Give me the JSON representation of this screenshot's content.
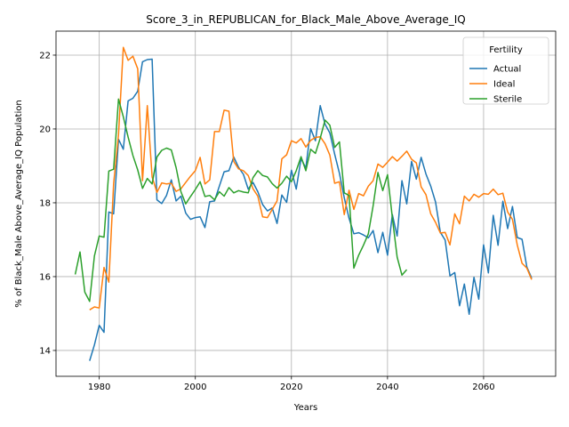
{
  "chart_data": {
    "type": "line",
    "title": "Score_3_in_REPUBLICAN_for_Black_Male_Above_Average_IQ",
    "xlabel": "Years",
    "ylabel": "% of Black_Male Above_Average_IQ Population",
    "xlim": [
      1971,
      2075
    ],
    "ylim": [
      13.3,
      22.65
    ],
    "xticks": [
      1980,
      2000,
      2020,
      2040,
      2060
    ],
    "yticks": [
      14,
      16,
      18,
      20,
      22
    ],
    "grid": true,
    "legend": {
      "title": "Fertility",
      "position": "top-right"
    },
    "series": [
      {
        "name": "Actual",
        "color": "#1f77b4",
        "x": [
          1978,
          1979,
          1980,
          1981,
          1982,
          1983,
          1984,
          1985,
          1986,
          1987,
          1988,
          1989,
          1990,
          1991,
          1992,
          1993,
          1994,
          1995,
          1996,
          1997,
          1998,
          1999,
          2000,
          2001,
          2002,
          2003,
          2004,
          2005,
          2006,
          2007,
          2008,
          2009,
          2010,
          2011,
          2012,
          2013,
          2014,
          2015,
          2016,
          2017,
          2018,
          2019,
          2020,
          2021,
          2022,
          2023,
          2024,
          2025,
          2026,
          2027,
          2028,
          2029,
          2030,
          2031,
          2032,
          2033,
          2034,
          2035,
          2036,
          2037,
          2038,
          2039,
          2040,
          2041,
          2042,
          2043,
          2044,
          2045,
          2046,
          2047,
          2048,
          2049,
          2050,
          2051,
          2052,
          2053,
          2054,
          2055,
          2056,
          2057,
          2058,
          2059,
          2060,
          2061,
          2062,
          2063,
          2064,
          2065,
          2066,
          2067,
          2068,
          2069,
          2070
        ],
        "y": [
          13.72,
          14.15,
          14.68,
          14.49,
          17.75,
          17.7,
          19.72,
          19.45,
          20.76,
          20.83,
          21.02,
          21.82,
          21.88,
          21.89,
          18.08,
          17.98,
          18.2,
          18.62,
          18.05,
          18.18,
          17.72,
          17.55,
          17.6,
          17.62,
          17.33,
          18.03,
          18.05,
          18.45,
          18.84,
          18.87,
          19.24,
          18.96,
          18.77,
          18.37,
          18.55,
          18.3,
          17.95,
          17.78,
          17.86,
          17.44,
          18.21,
          18.01,
          18.88,
          18.37,
          19.2,
          18.94,
          20.01,
          19.68,
          20.63,
          20.13,
          19.89,
          19.32,
          18.8,
          18.14,
          17.58,
          17.16,
          17.19,
          17.13,
          17.05,
          17.25,
          16.65,
          17.2,
          16.58,
          17.68,
          17.1,
          18.6,
          17.97,
          19.12,
          18.64,
          19.23,
          18.78,
          18.45,
          18.02,
          17.2,
          16.99,
          16.02,
          16.11,
          15.21,
          15.8,
          14.98,
          15.98,
          15.39,
          16.86,
          16.1,
          17.66,
          16.85,
          18.04,
          17.3,
          17.9,
          17.06,
          17.01,
          16.26,
          15.96
        ]
      },
      {
        "name": "Ideal",
        "color": "#ff7f0e",
        "x": [
          1978,
          1979,
          1980,
          1981,
          1982,
          1983,
          1984,
          1985,
          1986,
          1987,
          1988,
          1989,
          1990,
          1991,
          1992,
          1993,
          1994,
          1995,
          1996,
          1997,
          1998,
          1999,
          2000,
          2001,
          2002,
          2003,
          2004,
          2005,
          2006,
          2007,
          2008,
          2009,
          2010,
          2011,
          2012,
          2013,
          2014,
          2015,
          2016,
          2017,
          2018,
          2019,
          2020,
          2021,
          2022,
          2023,
          2024,
          2025,
          2026,
          2027,
          2028,
          2029,
          2030,
          2031,
          2032,
          2033,
          2034,
          2035,
          2036,
          2037,
          2038,
          2039,
          2040,
          2041,
          2042,
          2043,
          2044,
          2045,
          2046,
          2047,
          2048,
          2049,
          2050,
          2051,
          2052,
          2053,
          2054,
          2055,
          2056,
          2057,
          2058,
          2059,
          2060,
          2061,
          2062,
          2063,
          2064,
          2065,
          2066,
          2067,
          2068,
          2069,
          2070
        ],
        "y": [
          15.1,
          15.18,
          15.15,
          16.25,
          15.85,
          18.52,
          19.85,
          22.21,
          21.86,
          21.97,
          21.63,
          18.6,
          20.63,
          18.7,
          18.28,
          18.54,
          18.51,
          18.53,
          18.31,
          18.38,
          18.55,
          18.72,
          18.87,
          19.23,
          18.51,
          18.62,
          19.93,
          19.93,
          20.51,
          20.48,
          19.12,
          18.92,
          18.87,
          18.74,
          18.38,
          18.18,
          17.62,
          17.6,
          17.82,
          18.05,
          19.19,
          19.3,
          19.68,
          19.62,
          19.74,
          19.51,
          19.69,
          19.77,
          19.79,
          19.6,
          19.29,
          18.53,
          18.57,
          17.68,
          18.34,
          17.82,
          18.25,
          18.19,
          18.45,
          18.6,
          19.05,
          18.96,
          19.1,
          19.25,
          19.13,
          19.26,
          19.4,
          19.18,
          19.08,
          18.43,
          18.22,
          17.7,
          17.47,
          17.18,
          17.2,
          16.86,
          17.7,
          17.43,
          18.18,
          18.05,
          18.23,
          18.15,
          18.25,
          18.23,
          18.37,
          18.22,
          18.26,
          17.75,
          17.55,
          16.86,
          16.36,
          16.23,
          15.92
        ]
      },
      {
        "name": "Sterile",
        "color": "#2ca02c",
        "x": [
          1975,
          1976,
          1977,
          1978,
          1979,
          1980,
          1981,
          1982,
          1983,
          1984,
          1985,
          1986,
          1987,
          1988,
          1989,
          1990,
          1991,
          1992,
          1993,
          1994,
          1995,
          1996,
          1997,
          1998,
          1999,
          2000,
          2001,
          2002,
          2003,
          2004,
          2005,
          2006,
          2007,
          2008,
          2009,
          2010,
          2011,
          2012,
          2013,
          2014,
          2015,
          2016,
          2017,
          2018,
          2019,
          2020,
          2021,
          2022,
          2023,
          2024,
          2025,
          2026,
          2027,
          2028,
          2029,
          2030,
          2031,
          2032,
          2033,
          2034,
          2035,
          2036,
          2037,
          2038,
          2039,
          2040,
          2041,
          2042,
          2043,
          2044
        ],
        "y": [
          16.06,
          16.67,
          15.58,
          15.33,
          16.56,
          17.1,
          17.07,
          18.86,
          18.91,
          20.81,
          20.33,
          19.78,
          19.28,
          18.89,
          18.39,
          18.66,
          18.51,
          19.24,
          19.42,
          19.48,
          19.43,
          18.95,
          18.3,
          17.97,
          18.17,
          18.36,
          18.57,
          18.17,
          18.2,
          18.08,
          18.3,
          18.18,
          18.41,
          18.27,
          18.33,
          18.29,
          18.27,
          18.68,
          18.87,
          18.74,
          18.7,
          18.52,
          18.4,
          18.53,
          18.72,
          18.57,
          18.87,
          19.25,
          18.87,
          19.45,
          19.34,
          19.75,
          20.24,
          20.1,
          19.5,
          19.65,
          18.27,
          18.2,
          16.23,
          16.58,
          16.85,
          17.16,
          17.92,
          18.82,
          18.33,
          18.76,
          17.6,
          16.53,
          16.04,
          16.19
        ]
      }
    ]
  }
}
